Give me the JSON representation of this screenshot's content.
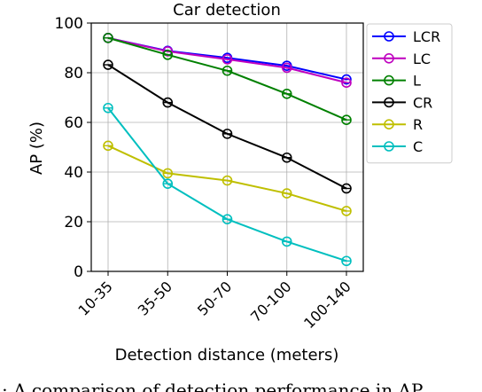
{
  "chart_data": {
    "type": "line",
    "title": "Car detection",
    "xlabel": "Detection distance (meters)",
    "ylabel": "AP (%)",
    "categories": [
      "10-35",
      "35-50",
      "50-70",
      "70-100",
      "100-140"
    ],
    "ylim": [
      0,
      100
    ],
    "yticks": [
      0,
      20,
      40,
      60,
      80,
      100
    ],
    "grid": true,
    "legend_position": "right",
    "series": [
      {
        "name": "LCR",
        "color": "#0000ff",
        "values": [
          94.0,
          88.8,
          86.0,
          82.8,
          77.3
        ]
      },
      {
        "name": "LC",
        "color": "#bf00bf",
        "values": [
          94.0,
          88.6,
          85.4,
          82.0,
          76.0
        ]
      },
      {
        "name": "L",
        "color": "#008000",
        "values": [
          94.0,
          87.2,
          80.8,
          71.5,
          61.0
        ]
      },
      {
        "name": "CR",
        "color": "#000000",
        "values": [
          83.2,
          68.0,
          55.4,
          45.8,
          33.4
        ]
      },
      {
        "name": "R",
        "color": "#bfbf00",
        "values": [
          50.6,
          39.5,
          36.6,
          31.4,
          24.3
        ]
      },
      {
        "name": "C",
        "color": "#00bfbf",
        "values": [
          65.8,
          35.3,
          21.0,
          12.0,
          4.2
        ]
      }
    ]
  },
  "caption": {
    "text": ": A comparison of detection performance in AP"
  }
}
